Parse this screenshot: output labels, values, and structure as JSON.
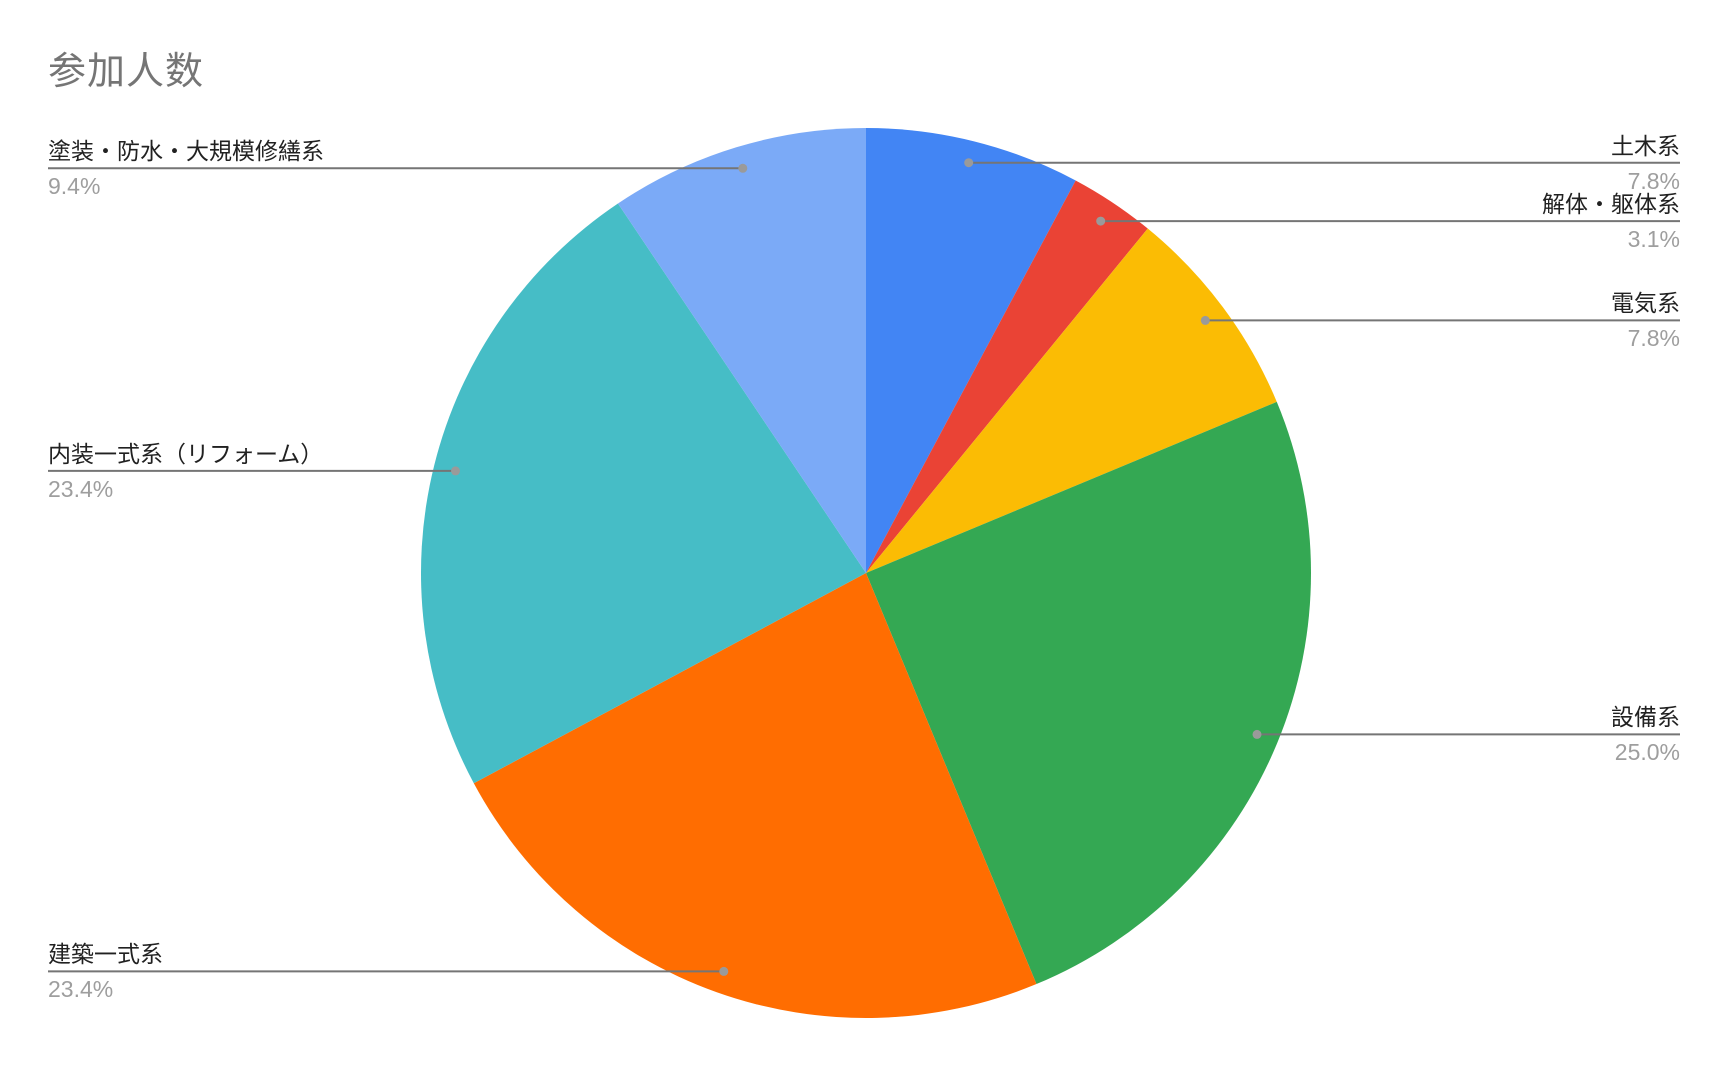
{
  "header": {
    "title": "参加人数"
  },
  "chart_data": {
    "type": "pie",
    "title": "参加人数",
    "legend_position": "labeled-callouts",
    "direction": "clockwise",
    "start_angle_deg": 0,
    "slices": [
      {
        "label": "土木系",
        "pct": "7.8%",
        "value": 7.8,
        "color": "#4285F4"
      },
      {
        "label": "解体・躯体系",
        "pct": "3.1%",
        "value": 3.1,
        "color": "#EA4335"
      },
      {
        "label": "電気系",
        "pct": "7.8%",
        "value": 7.8,
        "color": "#FBBC04"
      },
      {
        "label": "設備系",
        "pct": "25.0%",
        "value": 25.0,
        "color": "#34A853"
      },
      {
        "label": "建築一式系",
        "pct": "23.4%",
        "value": 23.4,
        "color": "#FF6D01"
      },
      {
        "label": "内装一式系（リフォーム）",
        "pct": "23.4%",
        "value": 23.4,
        "color": "#46BDC6"
      },
      {
        "label": "塗装・防水・大規模修繕系",
        "pct": "9.4%",
        "value": 9.4,
        "color": "#7BAAF7"
      }
    ],
    "styles": {
      "title_color": "#757575",
      "label_color": "#212121",
      "pct_color": "#9e9e9e",
      "line_color": "#757575",
      "dot_color": "#9a9a9a",
      "background": "#ffffff"
    }
  }
}
